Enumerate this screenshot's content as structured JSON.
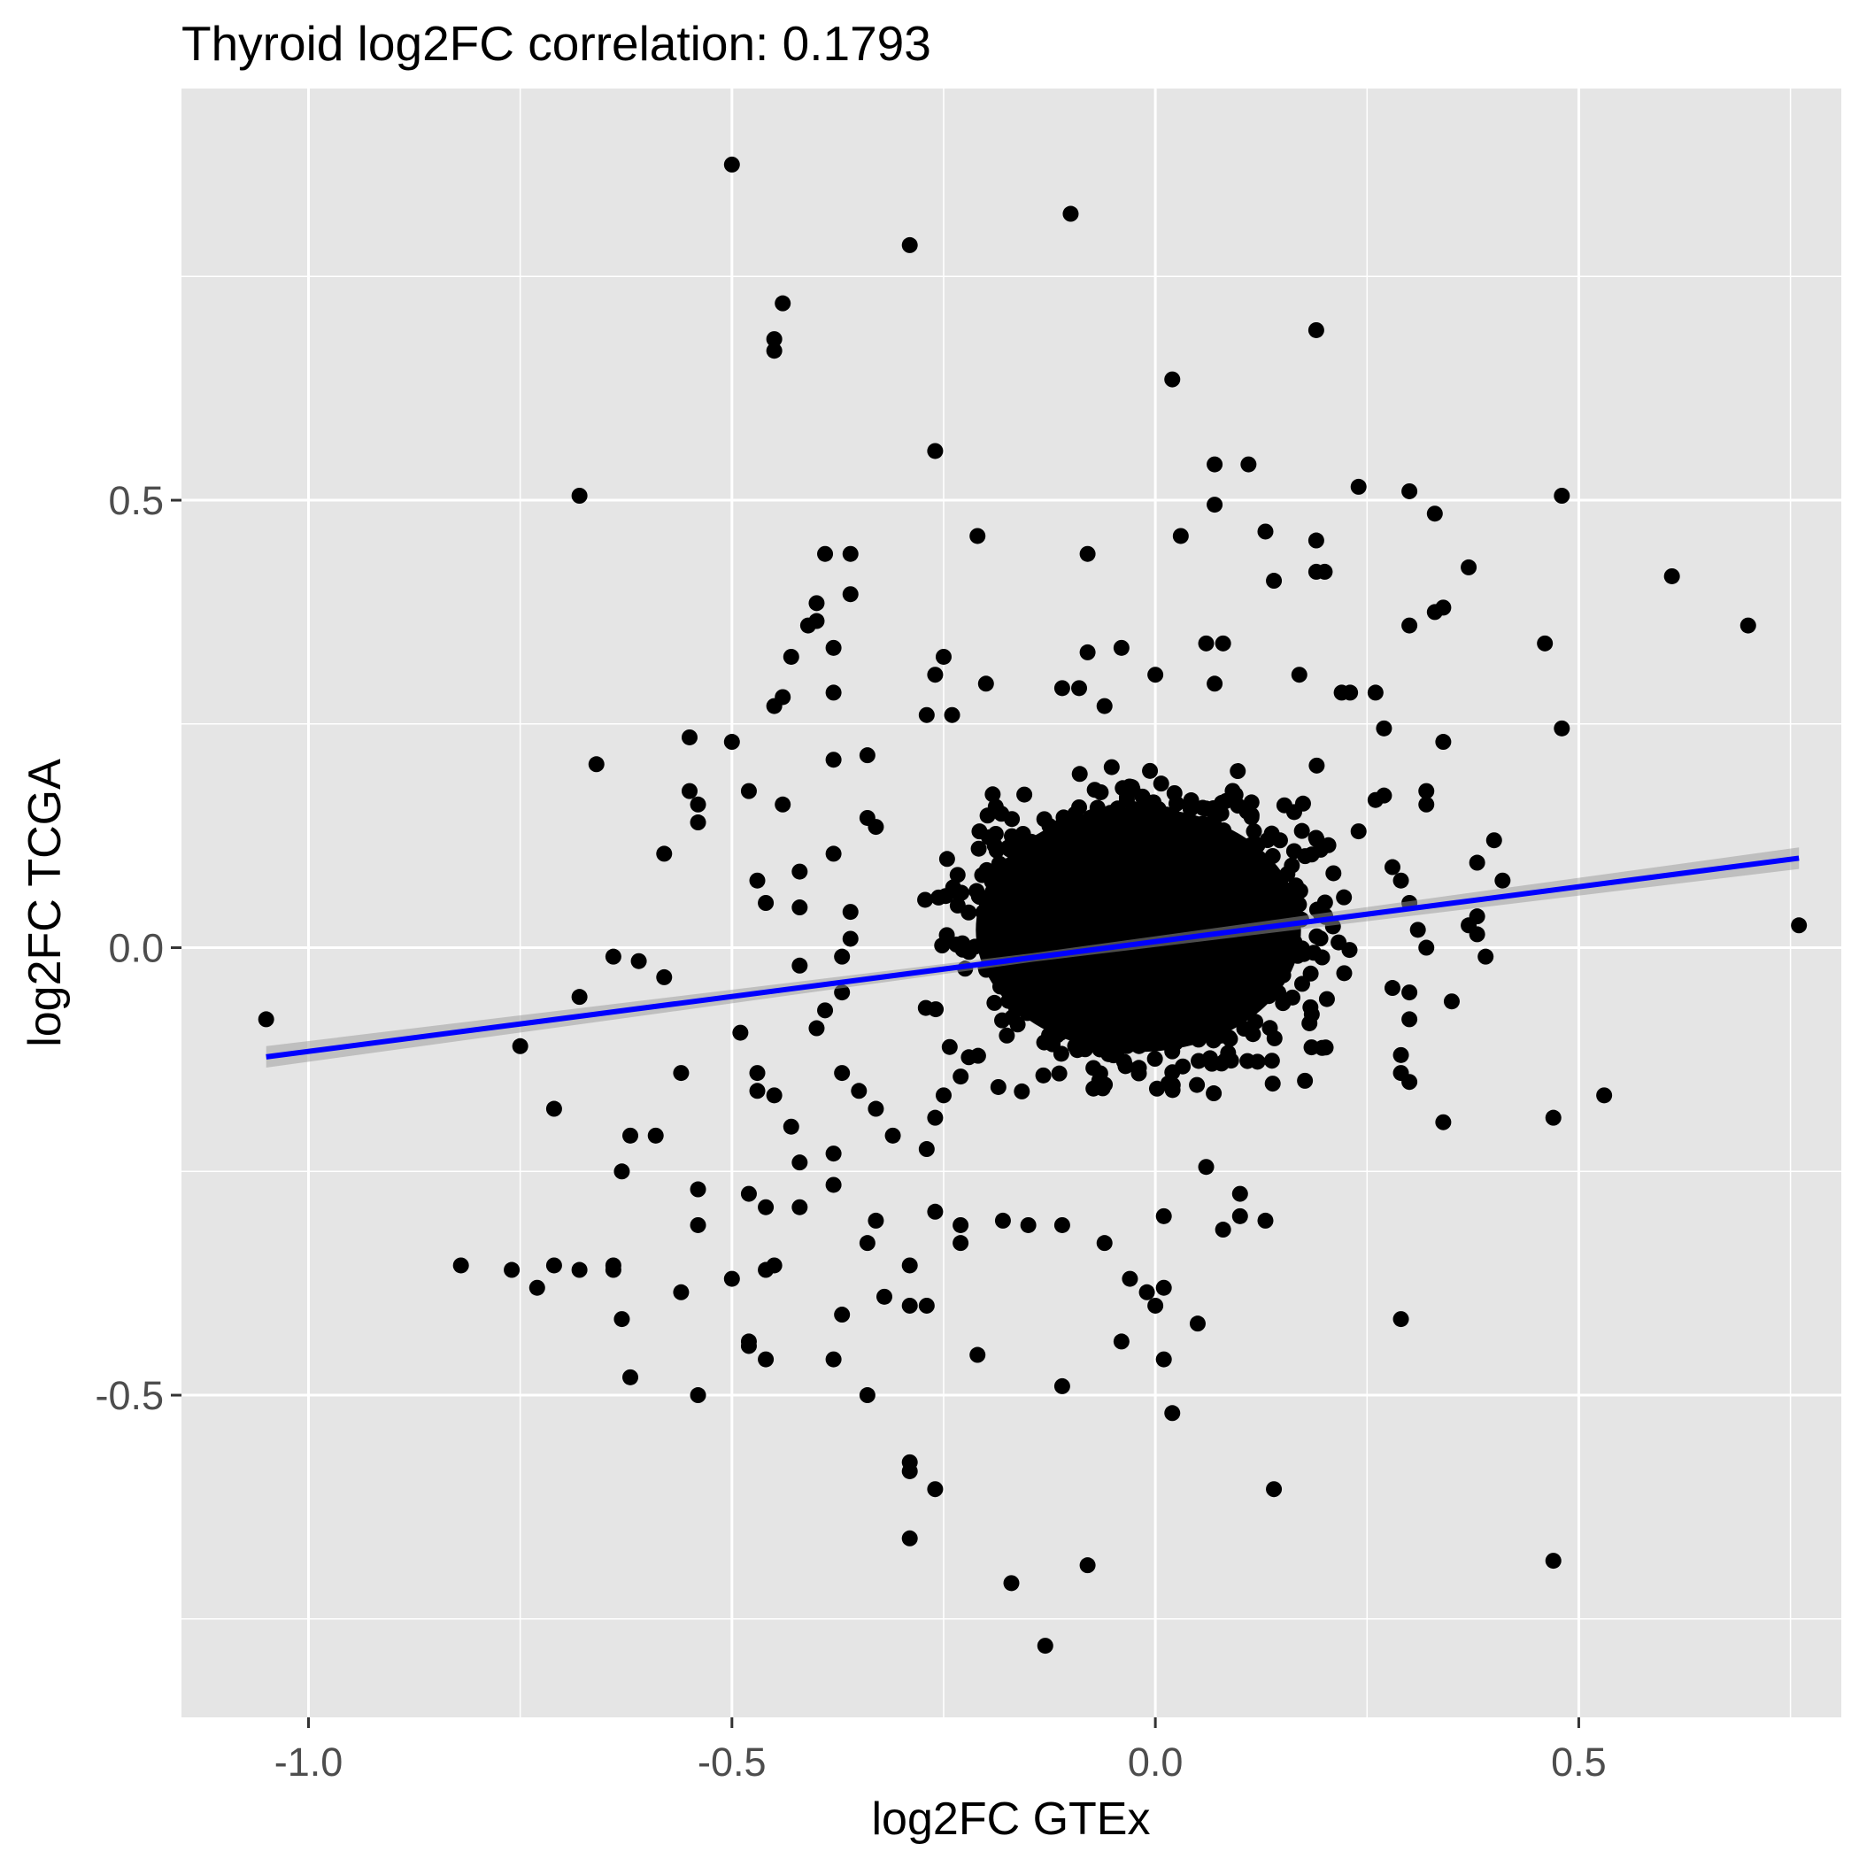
{
  "chart_data": {
    "type": "scatter",
    "title": "Thyroid log2FC correlation: 0.1793",
    "xlabel": "log2FC GTEx",
    "ylabel": "log2FC TCGA",
    "xlim": [
      -1.15,
      0.81
    ],
    "ylim": [
      -0.86,
      0.96
    ],
    "x_ticks": [
      -1.0,
      -0.5,
      0.0,
      0.5
    ],
    "x_tick_labels": [
      "-1.0",
      "-0.5",
      "0.0",
      "0.5"
    ],
    "y_ticks": [
      -0.5,
      0.0,
      0.5
    ],
    "y_tick_labels": [
      "-0.5",
      "0.0",
      "0.5"
    ],
    "grid": true,
    "colors": {
      "panel_background": "#e5e5e5",
      "grid_major": "#ffffff",
      "points": "#000000",
      "fit_line": "#0000ff",
      "confidence_band": "#999999"
    },
    "dense_core": {
      "description_free_center": [
        -0.02,
        0.02
      ],
      "x_extent": [
        -0.27,
        0.21
      ],
      "y_extent": [
        -0.17,
        0.18
      ]
    },
    "fit_line": {
      "x": [
        -1.05,
        0.76
      ],
      "y": [
        -0.122,
        0.1
      ],
      "band_halfwidth_at_ends": 0.012
    },
    "points": [
      [
        -0.5,
        0.875
      ],
      [
        -0.1,
        0.82
      ],
      [
        -0.29,
        0.785
      ],
      [
        -0.44,
        0.72
      ],
      [
        -0.45,
        0.68
      ],
      [
        -0.45,
        0.667
      ],
      [
        0.19,
        0.69
      ],
      [
        0.02,
        0.635
      ],
      [
        -0.26,
        0.555
      ],
      [
        0.07,
        0.54
      ],
      [
        0.11,
        0.54
      ],
      [
        -0.68,
        0.505
      ],
      [
        0.24,
        0.515
      ],
      [
        0.3,
        0.51
      ],
      [
        0.48,
        0.505
      ],
      [
        0.33,
        0.485
      ],
      [
        0.13,
        0.465
      ],
      [
        0.07,
        0.495
      ],
      [
        -0.21,
        0.46
      ],
      [
        0.03,
        0.46
      ],
      [
        -0.39,
        0.44
      ],
      [
        -0.36,
        0.44
      ],
      [
        -0.08,
        0.44
      ],
      [
        0.19,
        0.455
      ],
      [
        0.19,
        0.42
      ],
      [
        0.2,
        0.42
      ],
      [
        0.37,
        0.425
      ],
      [
        0.14,
        0.41
      ],
      [
        0.61,
        0.415
      ],
      [
        -0.36,
        0.395
      ],
      [
        -0.4,
        0.385
      ],
      [
        -0.41,
        0.36
      ],
      [
        -0.4,
        0.365
      ],
      [
        0.34,
        0.38
      ],
      [
        0.33,
        0.375
      ],
      [
        0.3,
        0.36
      ],
      [
        0.7,
        0.36
      ],
      [
        0.46,
        0.34
      ],
      [
        -0.38,
        0.335
      ],
      [
        -0.43,
        0.325
      ],
      [
        -0.25,
        0.325
      ],
      [
        -0.08,
        0.33
      ],
      [
        -0.04,
        0.335
      ],
      [
        0.06,
        0.34
      ],
      [
        0.08,
        0.34
      ],
      [
        -0.26,
        0.305
      ],
      [
        0.0,
        0.305
      ],
      [
        0.07,
        0.295
      ],
      [
        0.17,
        0.305
      ],
      [
        -0.2,
        0.295
      ],
      [
        -0.38,
        0.285
      ],
      [
        -0.44,
        0.28
      ],
      [
        -0.09,
        0.29
      ],
      [
        -0.11,
        0.29
      ],
      [
        0.26,
        0.285
      ],
      [
        0.23,
        0.285
      ],
      [
        0.22,
        0.285
      ],
      [
        -0.45,
        0.27
      ],
      [
        -0.06,
        0.27
      ],
      [
        -0.27,
        0.26
      ],
      [
        -0.24,
        0.26
      ],
      [
        0.27,
        0.245
      ],
      [
        0.48,
        0.245
      ],
      [
        -0.55,
        0.235
      ],
      [
        -0.5,
        0.23
      ],
      [
        0.34,
        0.23
      ],
      [
        -0.66,
        0.205
      ],
      [
        -0.38,
        0.21
      ],
      [
        -0.34,
        0.215
      ],
      [
        0.4,
        0.12
      ],
      [
        0.38,
        0.095
      ],
      [
        0.41,
        0.075
      ],
      [
        0.38,
        0.035
      ],
      [
        0.37,
        0.025
      ],
      [
        0.38,
        0.015
      ],
      [
        0.39,
        -0.01
      ],
      [
        0.35,
        -0.06
      ],
      [
        0.76,
        0.025
      ],
      [
        -1.05,
        -0.08
      ],
      [
        -0.64,
        -0.01
      ],
      [
        -0.61,
        -0.015
      ],
      [
        -0.58,
        -0.033
      ],
      [
        -0.68,
        -0.055
      ],
      [
        -0.75,
        -0.11
      ],
      [
        -0.56,
        -0.14
      ],
      [
        -0.71,
        -0.18
      ],
      [
        -0.58,
        0.105
      ],
      [
        -0.55,
        0.175
      ],
      [
        -0.54,
        0.16
      ],
      [
        -0.54,
        0.14
      ],
      [
        -0.48,
        0.175
      ],
      [
        -0.44,
        0.16
      ],
      [
        -0.46,
        0.05
      ],
      [
        -0.47,
        0.075
      ],
      [
        -0.49,
        -0.095
      ],
      [
        -0.47,
        -0.14
      ],
      [
        -0.45,
        -0.165
      ],
      [
        -0.47,
        -0.16
      ],
      [
        -0.43,
        -0.2
      ],
      [
        -0.42,
        -0.24
      ],
      [
        -0.59,
        -0.21
      ],
      [
        -0.62,
        -0.21
      ],
      [
        -0.63,
        -0.25
      ],
      [
        -0.54,
        -0.27
      ],
      [
        -0.54,
        -0.31
      ],
      [
        -0.48,
        -0.275
      ],
      [
        -0.46,
        -0.29
      ],
      [
        -0.42,
        -0.29
      ],
      [
        -0.38,
        -0.265
      ],
      [
        -0.38,
        -0.23
      ],
      [
        -0.33,
        -0.305
      ],
      [
        -0.34,
        -0.33
      ],
      [
        -0.29,
        -0.355
      ],
      [
        -0.26,
        -0.295
      ],
      [
        -0.23,
        -0.31
      ],
      [
        -0.23,
        -0.33
      ],
      [
        -0.18,
        -0.305
      ],
      [
        -0.15,
        -0.31
      ],
      [
        -0.11,
        -0.31
      ],
      [
        -0.06,
        -0.33
      ],
      [
        0.01,
        -0.3
      ],
      [
        0.08,
        -0.315
      ],
      [
        0.1,
        -0.3
      ],
      [
        0.13,
        -0.305
      ],
      [
        0.1,
        -0.275
      ],
      [
        0.06,
        -0.245
      ],
      [
        -0.82,
        -0.355
      ],
      [
        -0.76,
        -0.36
      ],
      [
        -0.73,
        -0.38
      ],
      [
        -0.71,
        -0.355
      ],
      [
        -0.68,
        -0.36
      ],
      [
        -0.64,
        -0.355
      ],
      [
        -0.64,
        -0.36
      ],
      [
        -0.56,
        -0.385
      ],
      [
        -0.5,
        -0.37
      ],
      [
        -0.46,
        -0.36
      ],
      [
        -0.45,
        -0.355
      ],
      [
        -0.63,
        -0.415
      ],
      [
        -0.62,
        -0.48
      ],
      [
        -0.48,
        -0.445
      ],
      [
        -0.48,
        -0.44
      ],
      [
        -0.46,
        -0.46
      ],
      [
        -0.38,
        -0.46
      ],
      [
        -0.37,
        -0.41
      ],
      [
        -0.32,
        -0.39
      ],
      [
        -0.29,
        -0.4
      ],
      [
        -0.27,
        -0.4
      ],
      [
        -0.54,
        -0.5
      ],
      [
        -0.34,
        -0.5
      ],
      [
        -0.21,
        -0.455
      ],
      [
        -0.11,
        -0.49
      ],
      [
        -0.04,
        -0.44
      ],
      [
        0.01,
        -0.46
      ],
      [
        0.02,
        -0.52
      ],
      [
        0.01,
        -0.38
      ],
      [
        -0.03,
        -0.37
      ],
      [
        -0.01,
        -0.385
      ],
      [
        0.0,
        -0.4
      ],
      [
        0.05,
        -0.42
      ],
      [
        0.29,
        -0.415
      ],
      [
        0.14,
        -0.605
      ],
      [
        -0.29,
        -0.575
      ],
      [
        -0.29,
        -0.585
      ],
      [
        -0.26,
        -0.605
      ],
      [
        -0.29,
        -0.66
      ],
      [
        -0.17,
        -0.71
      ],
      [
        -0.08,
        -0.69
      ],
      [
        -0.13,
        -0.78
      ],
      [
        0.47,
        -0.685
      ],
      [
        0.47,
        -0.19
      ],
      [
        0.53,
        -0.165
      ],
      [
        0.34,
        -0.195
      ],
      [
        0.3,
        -0.15
      ],
      [
        0.29,
        -0.14
      ],
      [
        0.29,
        -0.12
      ],
      [
        0.3,
        -0.08
      ],
      [
        0.3,
        -0.05
      ],
      [
        0.28,
        -0.045
      ],
      [
        0.32,
        0.0
      ],
      [
        0.31,
        0.02
      ],
      [
        0.3,
        0.05
      ],
      [
        0.29,
        0.075
      ],
      [
        0.28,
        0.09
      ],
      [
        0.24,
        0.13
      ],
      [
        0.26,
        0.165
      ],
      [
        0.27,
        0.17
      ],
      [
        0.32,
        0.175
      ],
      [
        0.32,
        0.16
      ],
      [
        -0.34,
        0.145
      ],
      [
        -0.33,
        0.135
      ],
      [
        -0.38,
        0.105
      ],
      [
        -0.42,
        0.085
      ],
      [
        -0.42,
        0.045
      ],
      [
        -0.36,
        0.04
      ],
      [
        -0.36,
        0.01
      ],
      [
        -0.37,
        -0.01
      ],
      [
        -0.37,
        -0.05
      ],
      [
        -0.42,
        -0.02
      ],
      [
        -0.39,
        -0.07
      ],
      [
        -0.4,
        -0.09
      ],
      [
        -0.37,
        -0.14
      ],
      [
        -0.35,
        -0.16
      ],
      [
        -0.33,
        -0.18
      ],
      [
        -0.31,
        -0.21
      ],
      [
        -0.27,
        -0.225
      ],
      [
        -0.26,
        -0.19
      ],
      [
        -0.25,
        -0.165
      ]
    ]
  }
}
